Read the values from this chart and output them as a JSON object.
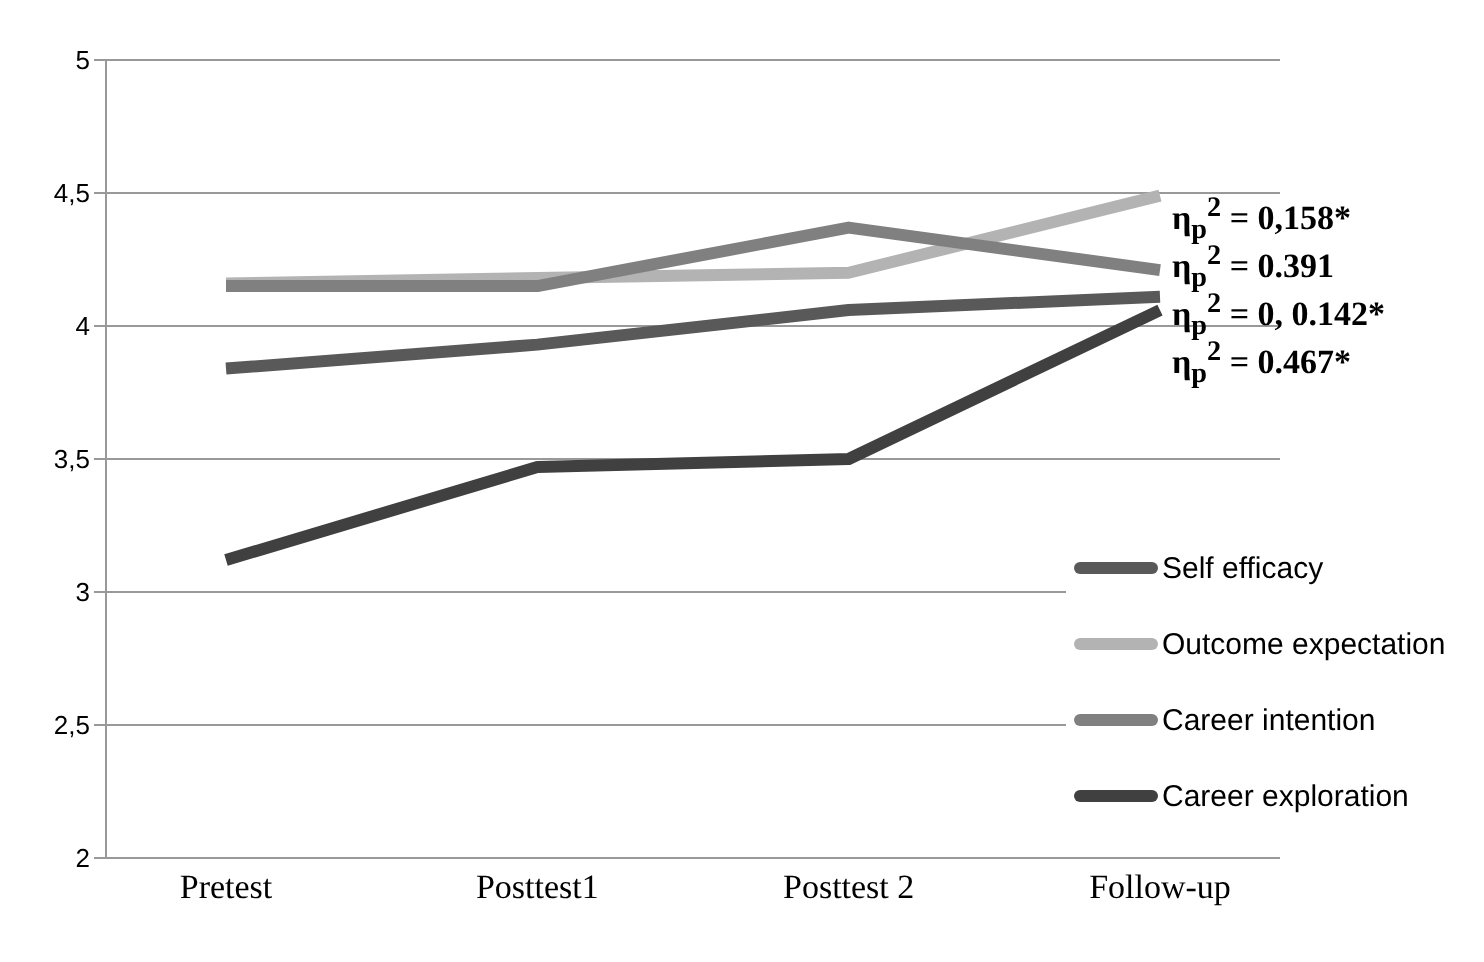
{
  "chart_data": {
    "type": "line",
    "categories": [
      "Pretest",
      "Posttest1",
      "Posttest 2",
      "Follow-up"
    ],
    "series": [
      {
        "name": "Self efficacy",
        "color": "#595959",
        "values": [
          3.84,
          3.93,
          4.06,
          4.11
        ]
      },
      {
        "name": "Outcome expectation",
        "color": "#b3b3b3",
        "values": [
          4.16,
          4.18,
          4.2,
          4.49
        ]
      },
      {
        "name": "Career intention",
        "color": "#808080",
        "values": [
          4.15,
          4.15,
          4.37,
          4.21
        ]
      },
      {
        "name": "Career exploration",
        "color": "#404040",
        "values": [
          3.12,
          3.47,
          3.5,
          4.06
        ]
      }
    ],
    "ylim": [
      2,
      5
    ],
    "yticks": [
      2,
      {
        "value": 2.5,
        "label": "2,5"
      },
      3,
      {
        "value": 3.5,
        "label": "3,5"
      },
      4,
      {
        "value": 4.5,
        "label": "4,5"
      },
      5
    ],
    "grid": "y",
    "legend": "bottom right",
    "marker": "none",
    "line_style": "solid",
    "annotations": [
      "η$_{p}$$^{2}$ = 0,158*",
      "η$_{p}$$^{2}$ = 0.391",
      "η$_{p}$$^{2}$ = 0, 0.142*",
      "η$_{p}$$^{2}$ = 0.467*"
    ]
  }
}
